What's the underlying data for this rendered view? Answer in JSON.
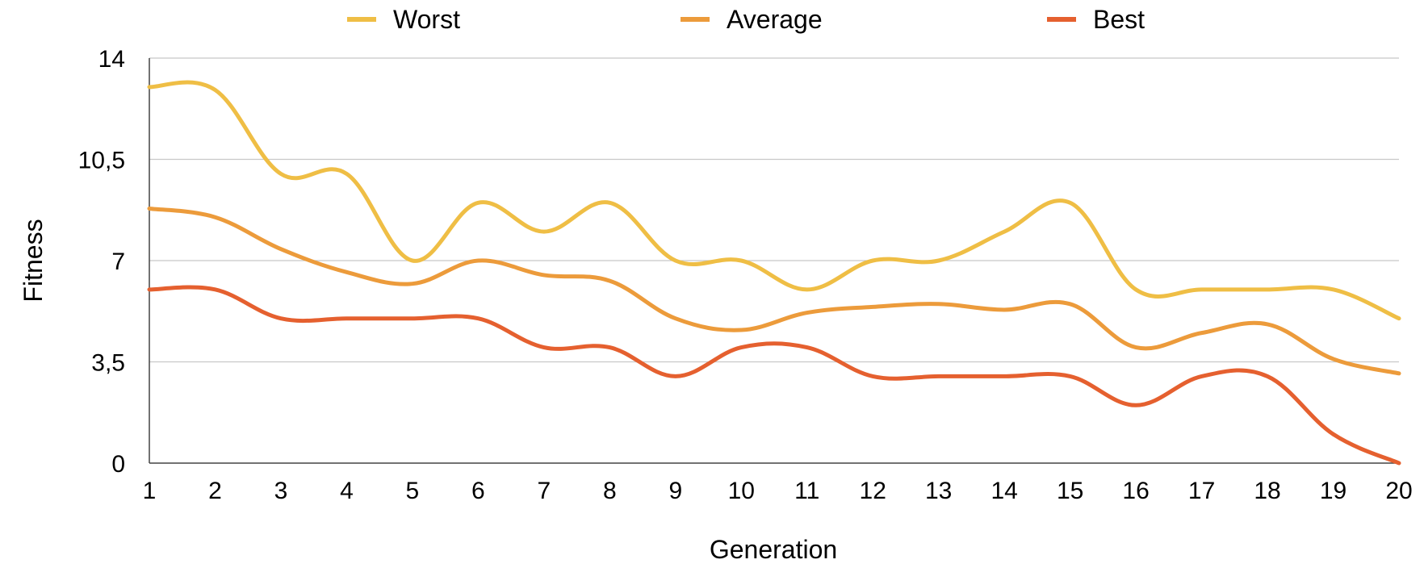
{
  "chart_data": {
    "type": "line",
    "title": "",
    "xlabel": "Generation",
    "ylabel": "Fitness",
    "x": [
      1,
      2,
      3,
      4,
      5,
      6,
      7,
      8,
      9,
      10,
      11,
      12,
      13,
      14,
      15,
      16,
      17,
      18,
      19,
      20
    ],
    "xlim": [
      1,
      20
    ],
    "ylim": [
      0,
      14
    ],
    "yticks": [
      "0",
      "3,5",
      "7",
      "10,5",
      "14"
    ],
    "ytick_values": [
      0,
      3.5,
      7,
      10.5,
      14
    ],
    "grid": true,
    "legend_position": "top",
    "series": [
      {
        "name": "Worst",
        "color": "#efbe45",
        "values": [
          13.0,
          12.9,
          10.0,
          10.0,
          7.0,
          9.0,
          8.0,
          9.0,
          7.0,
          7.0,
          6.0,
          7.0,
          7.0,
          8.0,
          9.0,
          6.0,
          6.0,
          6.0,
          6.0,
          5.0
        ]
      },
      {
        "name": "Average",
        "color": "#ec9b3b",
        "values": [
          8.8,
          8.5,
          7.4,
          6.6,
          6.2,
          7.0,
          6.5,
          6.3,
          5.0,
          4.6,
          5.2,
          5.4,
          5.5,
          5.3,
          5.5,
          4.0,
          4.5,
          4.8,
          3.6,
          3.1
        ]
      },
      {
        "name": "Best",
        "color": "#e5602f",
        "values": [
          6.0,
          6.0,
          5.0,
          5.0,
          5.0,
          5.0,
          4.0,
          4.0,
          3.0,
          4.0,
          4.0,
          3.0,
          3.0,
          3.0,
          3.0,
          2.0,
          3.0,
          3.0,
          1.0,
          0.0
        ]
      }
    ]
  }
}
